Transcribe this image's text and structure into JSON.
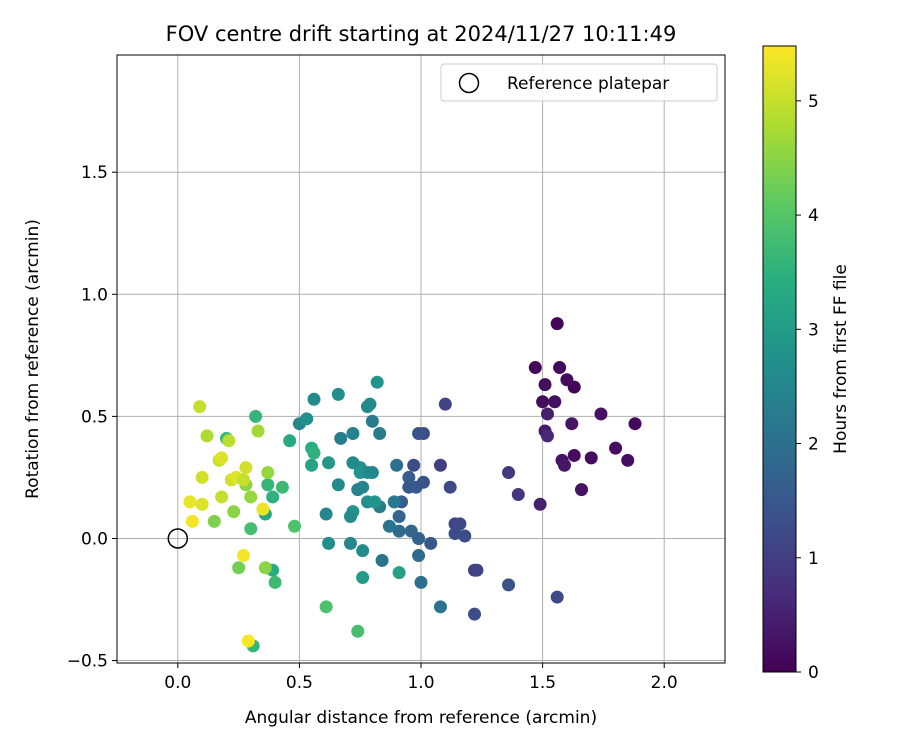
{
  "chart_data": {
    "type": "scatter",
    "title": "FOV centre drift starting at 2024/11/27 10:11:49",
    "xlabel": "Angular distance from reference (arcmin)",
    "ylabel": "Rotation from reference (arcmin)",
    "xlim": [
      -0.25,
      2.25
    ],
    "ylim": [
      -0.51,
      1.98
    ],
    "xticks": [
      0.0,
      0.5,
      1.0,
      1.5,
      2.0
    ],
    "xtick_labels": [
      "0.0",
      "0.5",
      "1.0",
      "1.5",
      "2.0"
    ],
    "yticks": [
      -0.5,
      0.0,
      0.5,
      1.0,
      1.5
    ],
    "ytick_labels": [
      "−0.5",
      "0.0",
      "0.5",
      "1.0",
      "1.5"
    ],
    "grid": true,
    "legend": {
      "position": "top-right",
      "entries": [
        {
          "label": "Reference platepar",
          "marker": "open-circle"
        }
      ]
    },
    "reference_point": {
      "x": 0.0,
      "y": 0.0
    },
    "colorbar": {
      "label": "Hours from first FF file",
      "colormap": "viridis",
      "range": [
        0,
        5.48
      ],
      "ticks": [
        0,
        1,
        2,
        3,
        4,
        5
      ],
      "tick_labels": [
        "0",
        "1",
        "2",
        "3",
        "4",
        "5"
      ]
    },
    "points": [
      {
        "x": 1.56,
        "y": 0.88,
        "h": 0.05
      },
      {
        "x": 1.47,
        "y": 0.7,
        "h": 0.1
      },
      {
        "x": 1.57,
        "y": 0.7,
        "h": 0.12
      },
      {
        "x": 1.6,
        "y": 0.65,
        "h": 0.15
      },
      {
        "x": 1.51,
        "y": 0.63,
        "h": 0.2
      },
      {
        "x": 1.63,
        "y": 0.62,
        "h": 0.08
      },
      {
        "x": 1.5,
        "y": 0.56,
        "h": 0.18
      },
      {
        "x": 1.55,
        "y": 0.56,
        "h": 0.22
      },
      {
        "x": 1.74,
        "y": 0.51,
        "h": 0.25
      },
      {
        "x": 1.52,
        "y": 0.51,
        "h": 0.45
      },
      {
        "x": 1.88,
        "y": 0.47,
        "h": 0.12
      },
      {
        "x": 1.62,
        "y": 0.47,
        "h": 0.3
      },
      {
        "x": 1.51,
        "y": 0.44,
        "h": 0.4
      },
      {
        "x": 1.52,
        "y": 0.42,
        "h": 0.6
      },
      {
        "x": 1.8,
        "y": 0.37,
        "h": 0.2
      },
      {
        "x": 1.63,
        "y": 0.34,
        "h": 0.15
      },
      {
        "x": 1.7,
        "y": 0.33,
        "h": 0.18
      },
      {
        "x": 1.58,
        "y": 0.32,
        "h": 0.25
      },
      {
        "x": 1.59,
        "y": 0.3,
        "h": 0.35
      },
      {
        "x": 1.85,
        "y": 0.32,
        "h": 0.22
      },
      {
        "x": 1.66,
        "y": 0.2,
        "h": 0.28
      },
      {
        "x": 1.49,
        "y": 0.14,
        "h": 0.5
      },
      {
        "x": 1.36,
        "y": 0.27,
        "h": 0.9
      },
      {
        "x": 1.4,
        "y": 0.18,
        "h": 0.85
      },
      {
        "x": 1.1,
        "y": 0.55,
        "h": 1.1
      },
      {
        "x": 1.08,
        "y": 0.3,
        "h": 1.0
      },
      {
        "x": 1.12,
        "y": 0.21,
        "h": 1.2
      },
      {
        "x": 1.01,
        "y": 0.43,
        "h": 1.3
      },
      {
        "x": 0.99,
        "y": 0.43,
        "h": 1.4
      },
      {
        "x": 1.14,
        "y": 0.06,
        "h": 1.1
      },
      {
        "x": 1.16,
        "y": 0.06,
        "h": 1.2
      },
      {
        "x": 1.14,
        "y": 0.02,
        "h": 1.25
      },
      {
        "x": 1.18,
        "y": 0.01,
        "h": 1.3
      },
      {
        "x": 1.22,
        "y": -0.13,
        "h": 1.0
      },
      {
        "x": 1.23,
        "y": -0.13,
        "h": 1.1
      },
      {
        "x": 1.36,
        "y": -0.19,
        "h": 1.4
      },
      {
        "x": 1.56,
        "y": -0.24,
        "h": 1.2
      },
      {
        "x": 1.22,
        "y": -0.31,
        "h": 1.3
      },
      {
        "x": 1.04,
        "y": -0.02,
        "h": 1.5
      },
      {
        "x": 0.95,
        "y": 0.25,
        "h": 1.6
      },
      {
        "x": 0.97,
        "y": 0.3,
        "h": 1.3
      },
      {
        "x": 0.95,
        "y": 0.21,
        "h": 1.5
      },
      {
        "x": 0.98,
        "y": 0.21,
        "h": 1.55
      },
      {
        "x": 1.01,
        "y": 0.23,
        "h": 1.4
      },
      {
        "x": 0.92,
        "y": 0.15,
        "h": 1.6
      },
      {
        "x": 0.91,
        "y": 0.09,
        "h": 1.8
      },
      {
        "x": 0.91,
        "y": 0.03,
        "h": 1.9
      },
      {
        "x": 0.96,
        "y": 0.03,
        "h": 1.8
      },
      {
        "x": 0.99,
        "y": 0.0,
        "h": 1.7
      },
      {
        "x": 0.99,
        "y": -0.07,
        "h": 1.9
      },
      {
        "x": 1.0,
        "y": -0.18,
        "h": 2.0
      },
      {
        "x": 1.08,
        "y": -0.28,
        "h": 2.1
      },
      {
        "x": 0.9,
        "y": 0.3,
        "h": 2.0
      },
      {
        "x": 0.89,
        "y": 0.15,
        "h": 2.2
      },
      {
        "x": 0.87,
        "y": 0.05,
        "h": 2.1
      },
      {
        "x": 0.83,
        "y": 0.13,
        "h": 2.3
      },
      {
        "x": 0.84,
        "y": -0.09,
        "h": 2.1
      },
      {
        "x": 0.8,
        "y": 0.48,
        "h": 2.2
      },
      {
        "x": 0.83,
        "y": 0.43,
        "h": 2.3
      },
      {
        "x": 0.78,
        "y": 0.54,
        "h": 2.5
      },
      {
        "x": 0.79,
        "y": 0.55,
        "h": 2.6
      },
      {
        "x": 0.82,
        "y": 0.64,
        "h": 2.8
      },
      {
        "x": 0.72,
        "y": 0.43,
        "h": 2.4
      },
      {
        "x": 0.67,
        "y": 0.41,
        "h": 2.3
      },
      {
        "x": 0.66,
        "y": 0.59,
        "h": 2.7
      },
      {
        "x": 0.56,
        "y": 0.57,
        "h": 2.6
      },
      {
        "x": 0.5,
        "y": 0.47,
        "h": 2.5
      },
      {
        "x": 0.53,
        "y": 0.49,
        "h": 2.7
      },
      {
        "x": 0.72,
        "y": 0.31,
        "h": 2.6
      },
      {
        "x": 0.75,
        "y": 0.29,
        "h": 2.7
      },
      {
        "x": 0.75,
        "y": 0.27,
        "h": 2.8
      },
      {
        "x": 0.78,
        "y": 0.27,
        "h": 2.6
      },
      {
        "x": 0.8,
        "y": 0.27,
        "h": 2.5
      },
      {
        "x": 0.74,
        "y": 0.2,
        "h": 2.4
      },
      {
        "x": 0.76,
        "y": 0.21,
        "h": 2.5
      },
      {
        "x": 0.78,
        "y": 0.15,
        "h": 2.7
      },
      {
        "x": 0.81,
        "y": 0.15,
        "h": 2.8
      },
      {
        "x": 0.72,
        "y": 0.11,
        "h": 2.8
      },
      {
        "x": 0.71,
        "y": 0.09,
        "h": 2.6
      },
      {
        "x": 0.61,
        "y": 0.1,
        "h": 2.5
      },
      {
        "x": 0.66,
        "y": 0.22,
        "h": 2.6
      },
      {
        "x": 0.62,
        "y": 0.31,
        "h": 2.9
      },
      {
        "x": 0.62,
        "y": -0.02,
        "h": 2.7
      },
      {
        "x": 0.71,
        "y": -0.02,
        "h": 2.5
      },
      {
        "x": 0.76,
        "y": -0.05,
        "h": 2.6
      },
      {
        "x": 0.76,
        "y": -0.16,
        "h": 3.0
      },
      {
        "x": 0.91,
        "y": -0.14,
        "h": 3.1
      },
      {
        "x": 0.55,
        "y": 0.37,
        "h": 3.4
      },
      {
        "x": 0.55,
        "y": 0.3,
        "h": 3.2
      },
      {
        "x": 0.56,
        "y": 0.35,
        "h": 3.5
      },
      {
        "x": 0.46,
        "y": 0.4,
        "h": 3.3
      },
      {
        "x": 0.43,
        "y": 0.21,
        "h": 3.7
      },
      {
        "x": 0.36,
        "y": 0.1,
        "h": 3.2
      },
      {
        "x": 0.32,
        "y": 0.5,
        "h": 3.6
      },
      {
        "x": 0.2,
        "y": 0.41,
        "h": 3.7
      },
      {
        "x": 0.48,
        "y": 0.05,
        "h": 3.9
      },
      {
        "x": 0.3,
        "y": 0.04,
        "h": 3.8
      },
      {
        "x": 0.39,
        "y": 0.17,
        "h": 3.5
      },
      {
        "x": 0.37,
        "y": 0.22,
        "h": 3.6
      },
      {
        "x": 0.39,
        "y": -0.13,
        "h": 3.4
      },
      {
        "x": 0.4,
        "y": -0.18,
        "h": 3.7
      },
      {
        "x": 0.61,
        "y": -0.28,
        "h": 3.9
      },
      {
        "x": 0.74,
        "y": -0.38,
        "h": 3.8
      },
      {
        "x": 0.31,
        "y": -0.44,
        "h": 3.6
      },
      {
        "x": 0.25,
        "y": -0.12,
        "h": 4.3
      },
      {
        "x": 0.36,
        "y": -0.12,
        "h": 4.5
      },
      {
        "x": 0.15,
        "y": 0.07,
        "h": 4.4
      },
      {
        "x": 0.23,
        "y": 0.11,
        "h": 4.5
      },
      {
        "x": 0.3,
        "y": 0.17,
        "h": 4.6
      },
      {
        "x": 0.28,
        "y": 0.22,
        "h": 4.5
      },
      {
        "x": 0.37,
        "y": 0.27,
        "h": 4.6
      },
      {
        "x": 0.33,
        "y": 0.44,
        "h": 4.7
      },
      {
        "x": 0.21,
        "y": 0.4,
        "h": 4.9
      },
      {
        "x": 0.12,
        "y": 0.42,
        "h": 4.8
      },
      {
        "x": 0.09,
        "y": 0.54,
        "h": 5.0
      },
      {
        "x": 0.1,
        "y": 0.25,
        "h": 5.1
      },
      {
        "x": 0.17,
        "y": 0.32,
        "h": 5.0
      },
      {
        "x": 0.18,
        "y": 0.33,
        "h": 5.2
      },
      {
        "x": 0.22,
        "y": 0.24,
        "h": 5.1
      },
      {
        "x": 0.24,
        "y": 0.25,
        "h": 5.2
      },
      {
        "x": 0.27,
        "y": 0.24,
        "h": 5.0
      },
      {
        "x": 0.28,
        "y": 0.29,
        "h": 5.1
      },
      {
        "x": 0.18,
        "y": 0.17,
        "h": 5.0
      },
      {
        "x": 0.1,
        "y": 0.14,
        "h": 5.2
      },
      {
        "x": 0.05,
        "y": 0.15,
        "h": 5.3
      },
      {
        "x": 0.06,
        "y": 0.07,
        "h": 5.4
      },
      {
        "x": 0.35,
        "y": 0.12,
        "h": 5.3
      },
      {
        "x": 0.27,
        "y": -0.07,
        "h": 5.4
      },
      {
        "x": 0.29,
        "y": -0.42,
        "h": 5.45
      }
    ]
  }
}
